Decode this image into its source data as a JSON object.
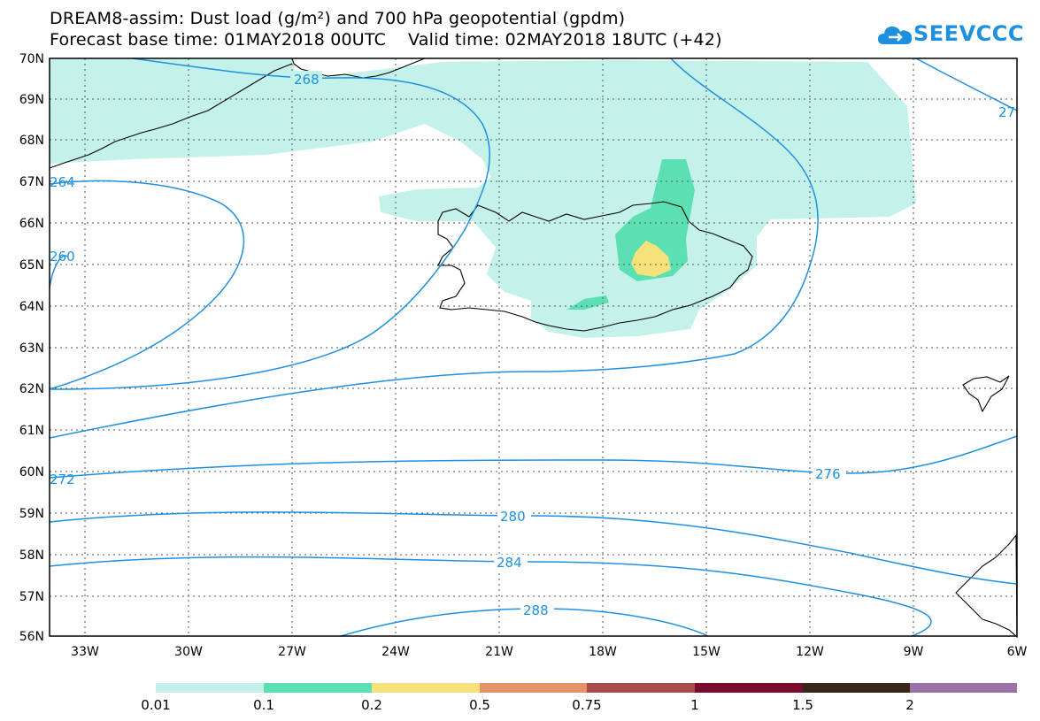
{
  "title_line1": "DREAM8-assim: Dust load (g/m²) and 700 hPa geopotential (gpdm)",
  "title_line2": "Forecast base time: 01MAY2018 00UTC    Valid time: 02MAY2018 18UTC (+42)",
  "logo_text": "SEEVCCC",
  "latitude_labels": [
    "70N",
    "69N",
    "68N",
    "67N",
    "66N",
    "65N",
    "64N",
    "63N",
    "62N",
    "61N",
    "60N",
    "59N",
    "58N",
    "57N",
    "56N"
  ],
  "longitude_labels": [
    "33W",
    "30W",
    "27W",
    "24W",
    "21W",
    "18W",
    "15W",
    "12W",
    "9W",
    "6W"
  ],
  "contour_labels": [
    "268",
    "276",
    "280",
    "284",
    "288",
    "272",
    "264",
    "260",
    "27"
  ],
  "colorbar": {
    "labels": [
      "0.01",
      "0.1",
      "0.2",
      "0.5",
      "0.75",
      "1",
      "1.5",
      "2"
    ],
    "colors": [
      "#c4f2ea",
      "#5ddfb4",
      "#f5e27a",
      "#e5936a",
      "#a84d4d",
      "#7b0c2e",
      "#3b2517",
      "#9b72a8"
    ]
  },
  "colors": {
    "contour": "#1e90e0",
    "coast": "#000000",
    "grid": "#555555"
  }
}
